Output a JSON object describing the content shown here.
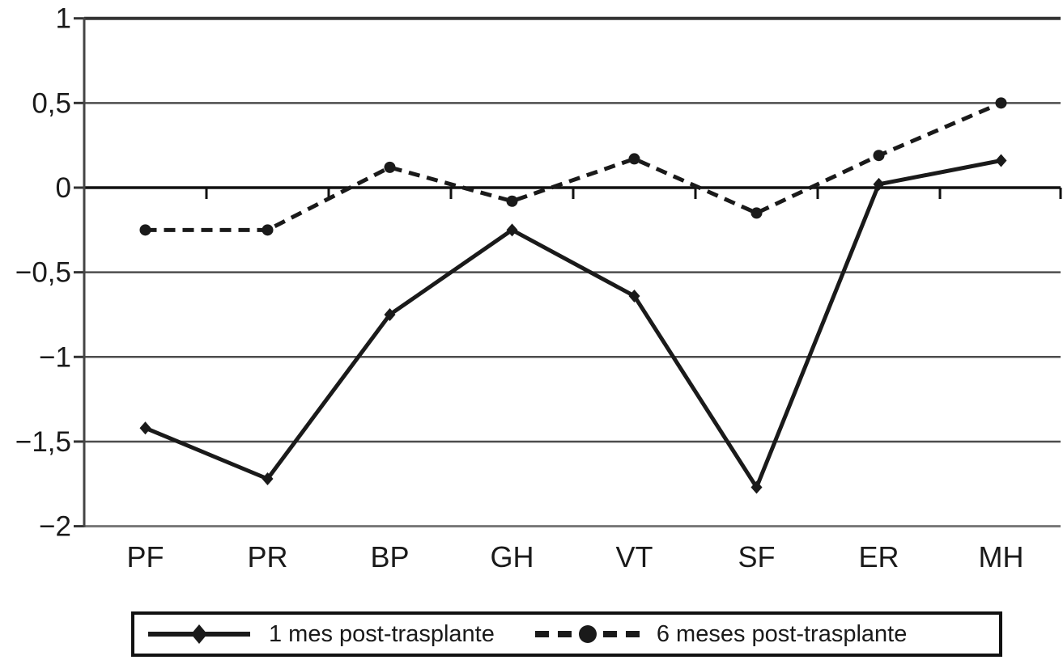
{
  "figure": {
    "background": "#ffffff",
    "ink_color": "#1a1a1a",
    "grid_color": "#4d4d4d",
    "axis_color": "#444444"
  },
  "legend": {
    "series1_label": "1 mes post-trasplante",
    "series2_label": "6 meses post-trasplante"
  },
  "chart_data": {
    "type": "line",
    "title": "",
    "xlabel": "",
    "ylabel": "",
    "categories": [
      "PF",
      "PR",
      "BP",
      "GH",
      "VT",
      "SF",
      "ER",
      "MH"
    ],
    "series": [
      {
        "name": "1 mes post-trasplante",
        "line_style": "solid",
        "marker": "diamond",
        "color": "#1a1a1a",
        "values": [
          -1.42,
          -1.72,
          -0.75,
          -0.25,
          -0.64,
          -1.77,
          0.02,
          0.16
        ]
      },
      {
        "name": "6 meses post-trasplante",
        "line_style": "dashed",
        "marker": "circle",
        "color": "#1a1a1a",
        "values": [
          -0.25,
          -0.25,
          0.12,
          -0.08,
          0.17,
          -0.15,
          0.19,
          0.5
        ]
      }
    ],
    "ylim": [
      -2,
      1
    ],
    "ytick_values": [
      1,
      0.5,
      0,
      -0.5,
      -1,
      -1.5,
      -2
    ],
    "ytick_labels": [
      "1",
      "0,5",
      "0",
      "−0,5",
      "−1",
      "−1,5",
      "−2"
    ],
    "grid": true,
    "decimal_separator": ",",
    "legend_position": "bottom"
  }
}
